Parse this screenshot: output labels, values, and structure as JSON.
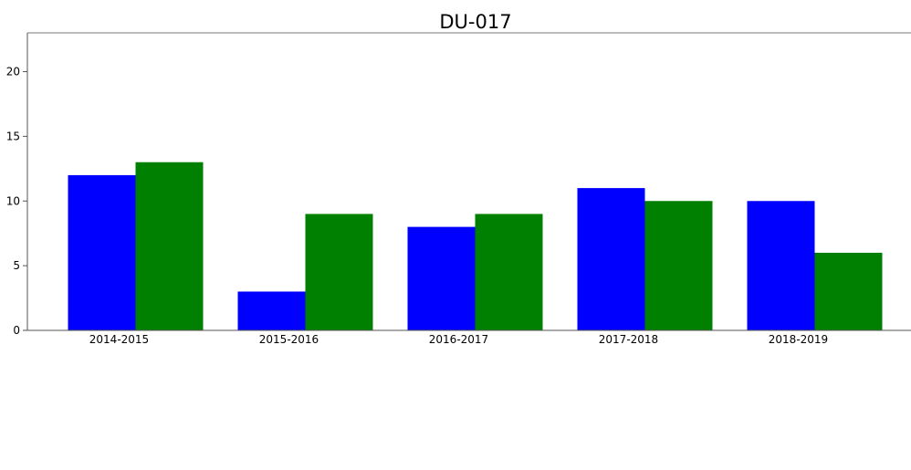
{
  "chart_data": {
    "type": "bar",
    "title": "DU-017",
    "xlabel": "",
    "ylabel": "",
    "categories": [
      "2014-2015",
      "2015-2016",
      "2016-2017",
      "2017-2018",
      "2018-2019"
    ],
    "series": [
      {
        "values": [
          12,
          3,
          8,
          11,
          10
        ],
        "color": "#0000ff"
      },
      {
        "values": [
          13,
          9,
          9,
          10,
          6
        ],
        "color": "#008000"
      }
    ],
    "ylim": [
      0,
      23
    ],
    "yticks": [
      0,
      5,
      10,
      15,
      20
    ],
    "grid": false,
    "legend": "none"
  }
}
